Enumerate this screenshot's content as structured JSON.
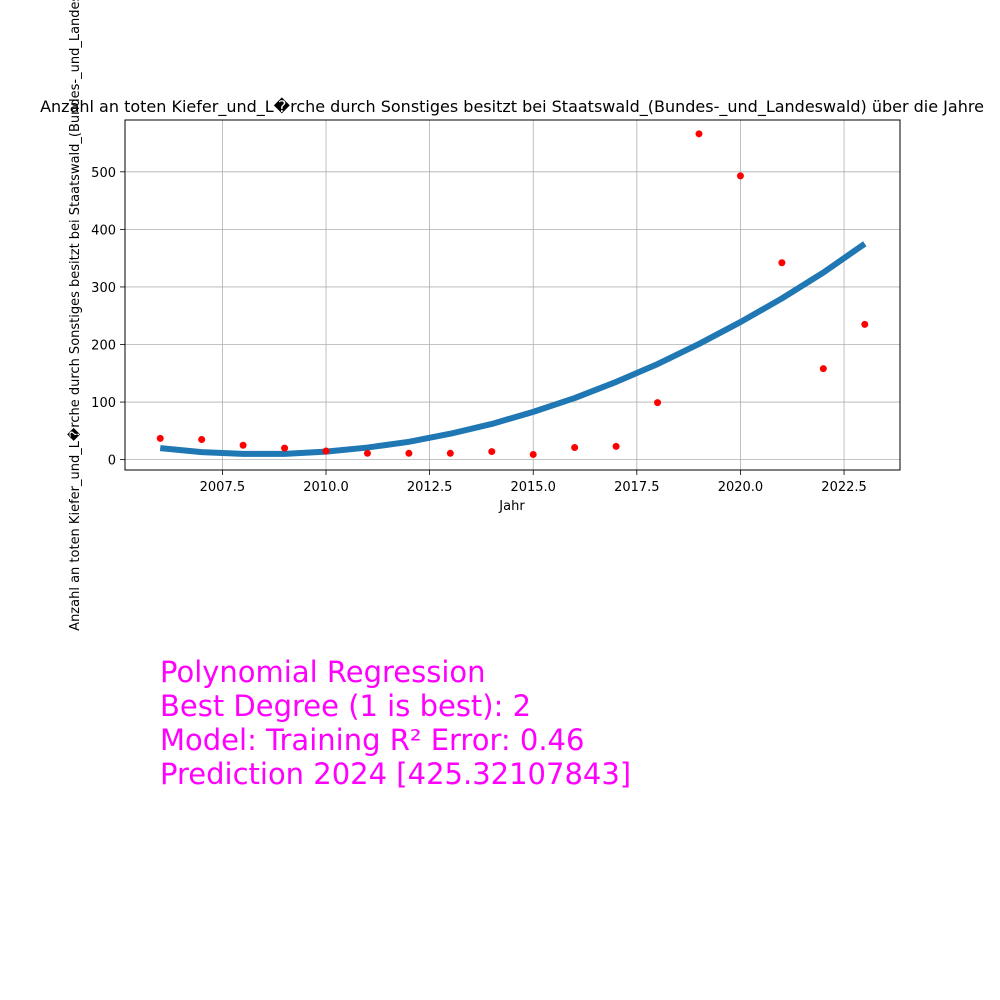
{
  "chart_data": {
    "type": "scatter",
    "title": "Anzahl an toten Kiefer_und_L�rche durch Sonstiges besitzt bei Staatswald_(Bundes-_und_Landeswald) über die Jahre",
    "xlabel": "Jahr",
    "ylabel": "Anzahl an toten Kiefer_und_L�rche durch Sonstiges besitzt bei Staatswald_(Bundes-_und_Landeswald)",
    "xlim": [
      2005.15,
      2023.85
    ],
    "ylim": [
      -18,
      590
    ],
    "grid": true,
    "x_ticks": [
      2007.5,
      2010.0,
      2012.5,
      2015.0,
      2017.5,
      2020.0,
      2022.5
    ],
    "x_tick_labels": [
      "2007.5",
      "2010.0",
      "2012.5",
      "2015.0",
      "2017.5",
      "2020.0",
      "2022.5"
    ],
    "y_ticks": [
      0,
      100,
      200,
      300,
      400,
      500
    ],
    "y_tick_labels": [
      "0",
      "100",
      "200",
      "300",
      "400",
      "500"
    ],
    "series": [
      {
        "kind": "scatter",
        "color": "#ff0000",
        "x": [
          2006,
          2007,
          2008,
          2009,
          2010,
          2011,
          2012,
          2013,
          2014,
          2015,
          2016,
          2017,
          2018,
          2019,
          2020,
          2021,
          2022,
          2023
        ],
        "y": [
          37,
          35,
          25,
          20,
          15,
          11,
          11,
          11,
          14,
          9,
          21,
          23,
          99,
          566,
          493,
          342,
          158,
          235
        ]
      },
      {
        "kind": "line",
        "color": "#1f77b4",
        "x": [
          2006,
          2007,
          2008,
          2009,
          2010,
          2011,
          2012,
          2013,
          2014,
          2015,
          2016,
          2017,
          2018,
          2019,
          2020,
          2021,
          2022,
          2023
        ],
        "y": [
          20,
          13,
          10,
          10,
          14,
          21,
          31,
          45,
          62,
          83,
          107,
          135,
          166,
          201,
          239,
          280,
          325,
          375
        ]
      }
    ]
  },
  "annotation": {
    "color": "#ff00ff",
    "lines": [
      "Polynomial Regression",
      "Best Degree (1 is best): 2",
      "Model: Training R² Error: 0.46",
      "Prediction 2024 [425.32107843]"
    ]
  }
}
